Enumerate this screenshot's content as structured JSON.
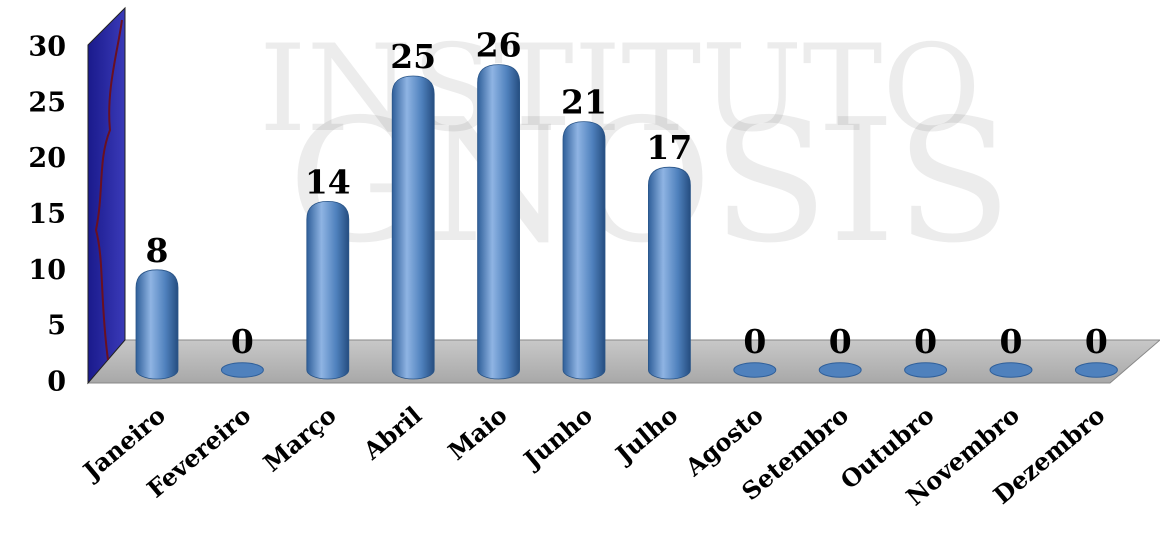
{
  "chart_data": {
    "type": "bar",
    "watermark": [
      "INSTITUTO",
      "GNOSIS"
    ],
    "categories": [
      "Janeiro",
      "Fevereiro",
      "Março",
      "Abril",
      "Maio",
      "Junho",
      "Julho",
      "Agosto",
      "Setembro",
      "Outubro",
      "Novembro",
      "Dezembro"
    ],
    "values": [
      8,
      0,
      14,
      25,
      26,
      21,
      17,
      0,
      0,
      0,
      0,
      0
    ],
    "color": "#4f81bd",
    "ylim": [
      0,
      30
    ],
    "yticks": [
      0,
      5,
      10,
      15,
      20,
      25,
      30
    ],
    "grid": false
  }
}
